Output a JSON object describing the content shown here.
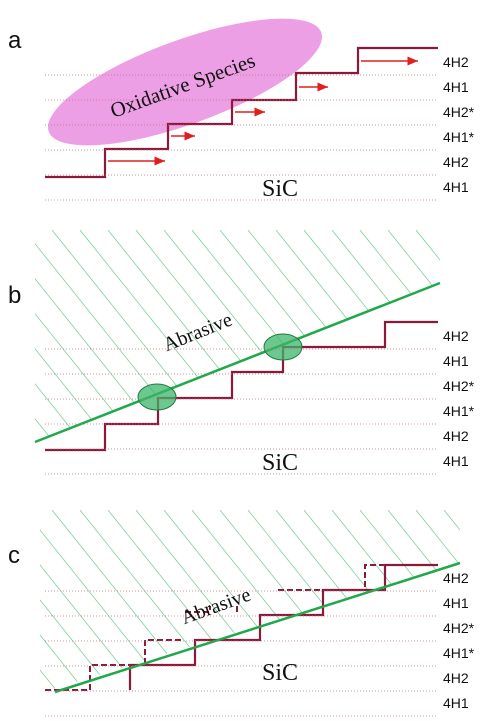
{
  "panels": [
    {
      "label": "a",
      "layers": [
        "4H2",
        "4H1",
        "4H2*",
        "4H1*",
        "4H2",
        "4H1"
      ],
      "annotation": "Oxidative Species",
      "material": "SiC"
    },
    {
      "label": "b",
      "layers": [
        "4H2",
        "4H1",
        "4H2*",
        "4H1*",
        "4H2",
        "4H1"
      ],
      "annotation": "Abrasive",
      "material": "SiC"
    },
    {
      "label": "c",
      "layers": [
        "4H2",
        "4H1",
        "4H2*",
        "4H1*",
        "4H2",
        "4H1"
      ],
      "annotation": "Abrasive",
      "material": "SiC"
    }
  ]
}
